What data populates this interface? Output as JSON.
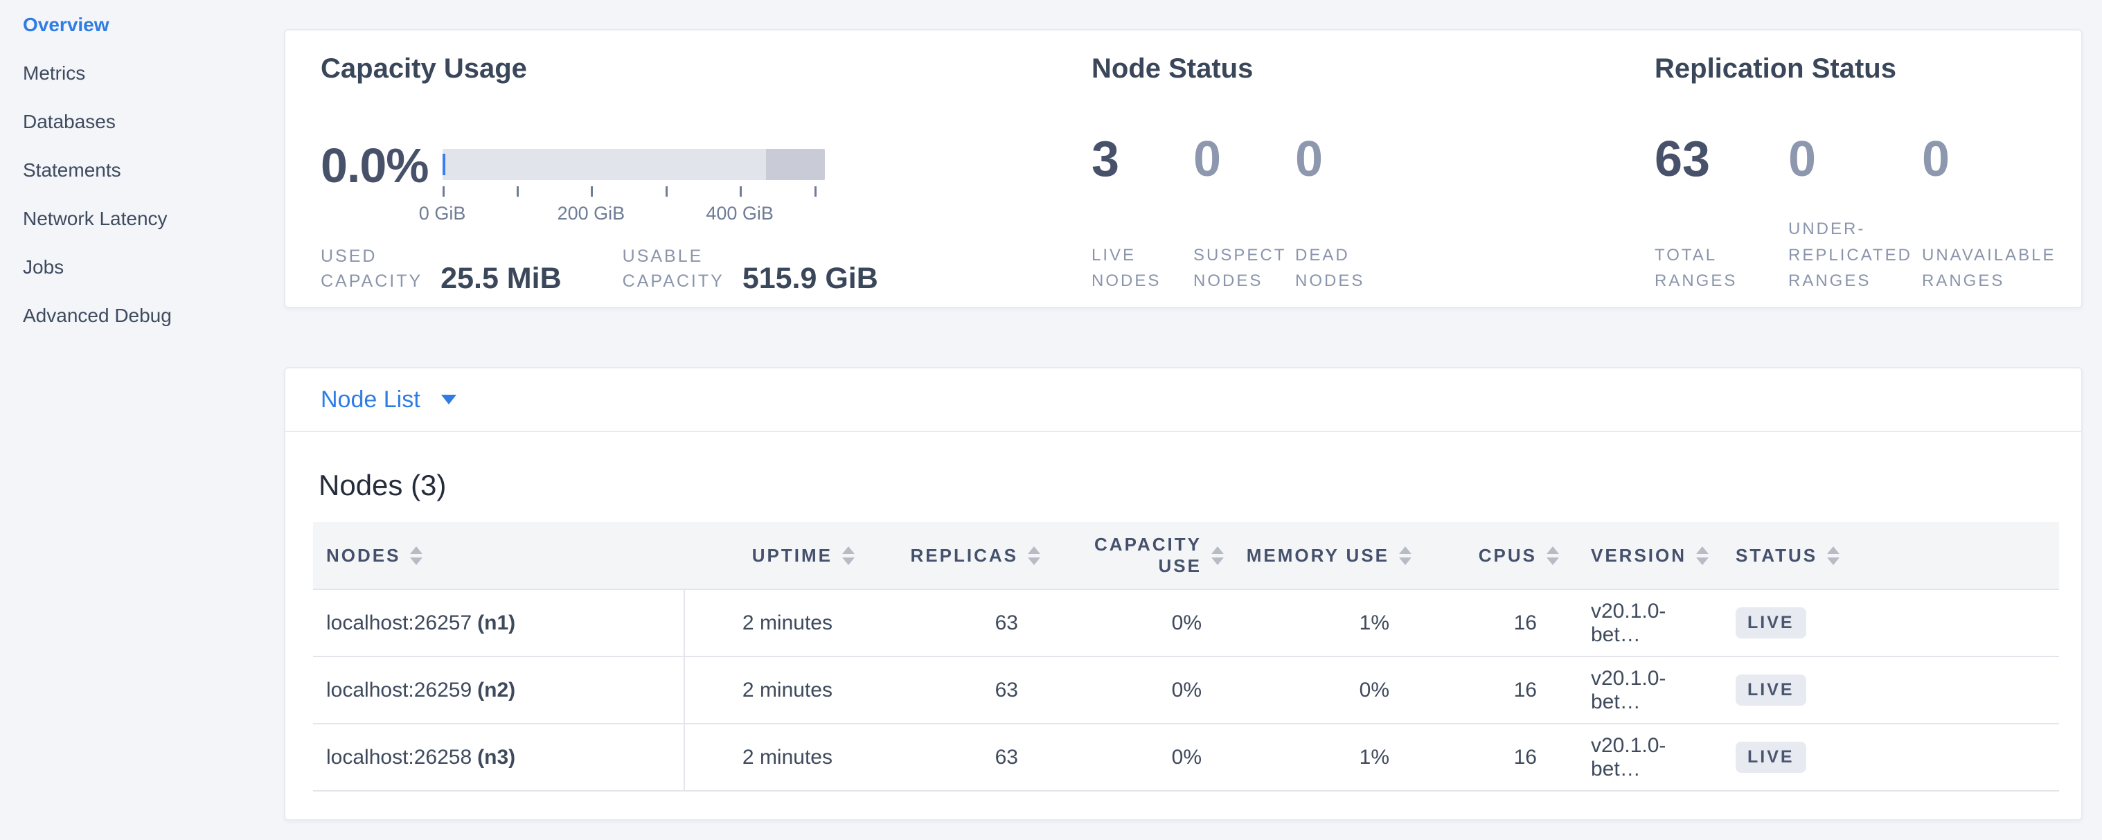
{
  "sidebar": {
    "items": [
      {
        "label": "Overview",
        "active": true
      },
      {
        "label": "Metrics",
        "active": false
      },
      {
        "label": "Databases",
        "active": false
      },
      {
        "label": "Statements",
        "active": false
      },
      {
        "label": "Network Latency",
        "active": false
      },
      {
        "label": "Jobs",
        "active": false
      },
      {
        "label": "Advanced Debug",
        "active": false
      }
    ]
  },
  "capacity": {
    "title": "Capacity Usage",
    "used_percent": "0.0%",
    "axis_labels": [
      "0 GiB",
      "200 GiB",
      "400 GiB"
    ],
    "stats": [
      {
        "label_lines": [
          "USED",
          "CAPACITY"
        ],
        "value": "25.5 MiB"
      },
      {
        "label_lines": [
          "USABLE",
          "CAPACITY"
        ],
        "value": "515.9 GiB"
      }
    ]
  },
  "node_status": {
    "title": "Node Status",
    "metrics": [
      {
        "value": "3",
        "label_lines": [
          "LIVE",
          "NODES"
        ],
        "emphasized": true
      },
      {
        "value": "0",
        "label_lines": [
          "SUSPECT",
          "NODES"
        ],
        "emphasized": false
      },
      {
        "value": "0",
        "label_lines": [
          "DEAD",
          "NODES"
        ],
        "emphasized": false
      }
    ]
  },
  "replication_status": {
    "title": "Replication Status",
    "metrics": [
      {
        "value": "63",
        "label_lines": [
          "TOTAL",
          "RANGES"
        ],
        "emphasized": true
      },
      {
        "value": "0",
        "label_lines": [
          "UNDER-",
          "REPLICATED",
          "RANGES"
        ],
        "emphasized": false
      },
      {
        "value": "0",
        "label_lines": [
          "UNAVAILABLE",
          "RANGES"
        ],
        "emphasized": false
      }
    ]
  },
  "node_list": {
    "label": "Node List"
  },
  "nodes_table": {
    "title": "Nodes (3)",
    "columns": [
      {
        "label": "NODES",
        "align": "left",
        "wrap": false
      },
      {
        "label": "UPTIME",
        "align": "right",
        "wrap": false
      },
      {
        "label": "REPLICAS",
        "align": "right",
        "wrap": false
      },
      {
        "label": "CAPACITY USE",
        "align": "right",
        "wrap": true
      },
      {
        "label": "MEMORY USE",
        "align": "right",
        "wrap": false
      },
      {
        "label": "CPUS",
        "align": "right",
        "wrap": false
      },
      {
        "label": "VERSION",
        "align": "left",
        "wrap": false
      },
      {
        "label": "STATUS",
        "align": "left",
        "wrap": false
      }
    ],
    "rows": [
      {
        "address": "localhost:26257",
        "node_id": "(n1)",
        "uptime": "2 minutes",
        "replicas": "63",
        "capacity_use": "0%",
        "memory_use": "1%",
        "cpus": "16",
        "version": "v20.1.0-bet…",
        "status": "LIVE"
      },
      {
        "address": "localhost:26259",
        "node_id": "(n2)",
        "uptime": "2 minutes",
        "replicas": "63",
        "capacity_use": "0%",
        "memory_use": "0%",
        "cpus": "16",
        "version": "v20.1.0-bet…",
        "status": "LIVE"
      },
      {
        "address": "localhost:26258",
        "node_id": "(n3)",
        "uptime": "2 minutes",
        "replicas": "63",
        "capacity_use": "0%",
        "memory_use": "1%",
        "cpus": "16",
        "version": "v20.1.0-bet…",
        "status": "LIVE"
      }
    ]
  },
  "colors": {
    "accent_blue": "#2e7ce4",
    "bar_used_blue": "#3b7cf0",
    "badge_bg": "#e7eaf1",
    "status_live_text": "#4a566f"
  }
}
